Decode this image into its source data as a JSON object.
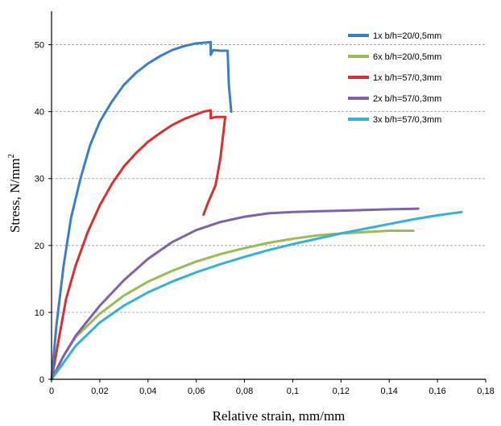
{
  "chart_data": {
    "type": "line",
    "title": "",
    "xlabel": "Relative strain, mm/mm",
    "ylabel_main": "Stress, N/mm",
    "ylabel_sup": "2",
    "xlim": [
      0,
      0.18
    ],
    "ylim": [
      0,
      55
    ],
    "xticks": [
      "0",
      "0,02",
      "0,04",
      "0,06",
      "0,08",
      "0,1",
      "0,12",
      "0,14",
      "0,16",
      "0,18"
    ],
    "yticks": [
      "0",
      "10",
      "20",
      "30",
      "40",
      "50"
    ],
    "grid": "horizontal dashed",
    "legend_position": "top-right",
    "series": [
      {
        "name": "1x b/h=20/0,5mm",
        "color": "#3a7fc4",
        "points": [
          [
            0,
            0
          ],
          [
            0.002,
            8
          ],
          [
            0.005,
            17
          ],
          [
            0.008,
            24
          ],
          [
            0.012,
            30
          ],
          [
            0.016,
            35
          ],
          [
            0.02,
            38.5
          ],
          [
            0.025,
            41.5
          ],
          [
            0.03,
            44
          ],
          [
            0.035,
            45.8
          ],
          [
            0.04,
            47.2
          ],
          [
            0.045,
            48.3
          ],
          [
            0.05,
            49.2
          ],
          [
            0.055,
            49.8
          ],
          [
            0.06,
            50.2
          ],
          [
            0.063,
            50.3
          ],
          [
            0.066,
            50.4
          ],
          [
            0.066,
            48.5
          ],
          [
            0.067,
            49.2
          ],
          [
            0.07,
            49.1
          ],
          [
            0.073,
            49.1
          ],
          [
            0.0735,
            44
          ],
          [
            0.0745,
            40
          ]
        ]
      },
      {
        "name": "6x b/h=20/0,5mm",
        "color": "#9bbb59",
        "points": [
          [
            0,
            0
          ],
          [
            0.005,
            3.5
          ],
          [
            0.01,
            6.3
          ],
          [
            0.02,
            9.8
          ],
          [
            0.03,
            12.5
          ],
          [
            0.04,
            14.6
          ],
          [
            0.05,
            16.2
          ],
          [
            0.06,
            17.6
          ],
          [
            0.07,
            18.7
          ],
          [
            0.08,
            19.6
          ],
          [
            0.09,
            20.4
          ],
          [
            0.1,
            21
          ],
          [
            0.11,
            21.5
          ],
          [
            0.12,
            21.8
          ],
          [
            0.13,
            22
          ],
          [
            0.14,
            22.2
          ],
          [
            0.15,
            22.2
          ]
        ]
      },
      {
        "name": "1x b/h=57/0,3mm",
        "color": "#d73030",
        "points": [
          [
            0,
            0
          ],
          [
            0.003,
            6
          ],
          [
            0.006,
            12
          ],
          [
            0.01,
            17
          ],
          [
            0.015,
            22
          ],
          [
            0.02,
            26
          ],
          [
            0.025,
            29.2
          ],
          [
            0.03,
            31.8
          ],
          [
            0.035,
            33.8
          ],
          [
            0.04,
            35.5
          ],
          [
            0.045,
            36.8
          ],
          [
            0.05,
            38
          ],
          [
            0.055,
            38.9
          ],
          [
            0.06,
            39.6
          ],
          [
            0.063,
            40
          ],
          [
            0.066,
            40.2
          ],
          [
            0.066,
            39
          ],
          [
            0.068,
            39.2
          ],
          [
            0.072,
            39.2
          ],
          [
            0.07,
            33
          ],
          [
            0.068,
            29
          ],
          [
            0.065,
            26.5
          ],
          [
            0.063,
            24.6
          ]
        ]
      },
      {
        "name": "2x b/h=57/0,3mm",
        "color": "#8062a8",
        "points": [
          [
            0,
            0
          ],
          [
            0.005,
            3.5
          ],
          [
            0.01,
            6.5
          ],
          [
            0.02,
            11
          ],
          [
            0.03,
            14.8
          ],
          [
            0.04,
            18
          ],
          [
            0.05,
            20.5
          ],
          [
            0.06,
            22.3
          ],
          [
            0.07,
            23.5
          ],
          [
            0.08,
            24.3
          ],
          [
            0.09,
            24.8
          ],
          [
            0.1,
            25
          ],
          [
            0.11,
            25.1
          ],
          [
            0.12,
            25.2
          ],
          [
            0.13,
            25.3
          ],
          [
            0.14,
            25.4
          ],
          [
            0.152,
            25.5
          ]
        ]
      },
      {
        "name": "3x b/h=57/0,3mm",
        "color": "#36b0d6",
        "points": [
          [
            0,
            0
          ],
          [
            0.005,
            2.5
          ],
          [
            0.01,
            5
          ],
          [
            0.02,
            8.5
          ],
          [
            0.03,
            11
          ],
          [
            0.04,
            13
          ],
          [
            0.05,
            14.6
          ],
          [
            0.06,
            16
          ],
          [
            0.07,
            17.2
          ],
          [
            0.08,
            18.3
          ],
          [
            0.09,
            19.3
          ],
          [
            0.1,
            20.2
          ],
          [
            0.11,
            21
          ],
          [
            0.12,
            21.8
          ],
          [
            0.13,
            22.5
          ],
          [
            0.14,
            23.2
          ],
          [
            0.15,
            23.9
          ],
          [
            0.16,
            24.5
          ],
          [
            0.17,
            25
          ]
        ]
      }
    ]
  }
}
